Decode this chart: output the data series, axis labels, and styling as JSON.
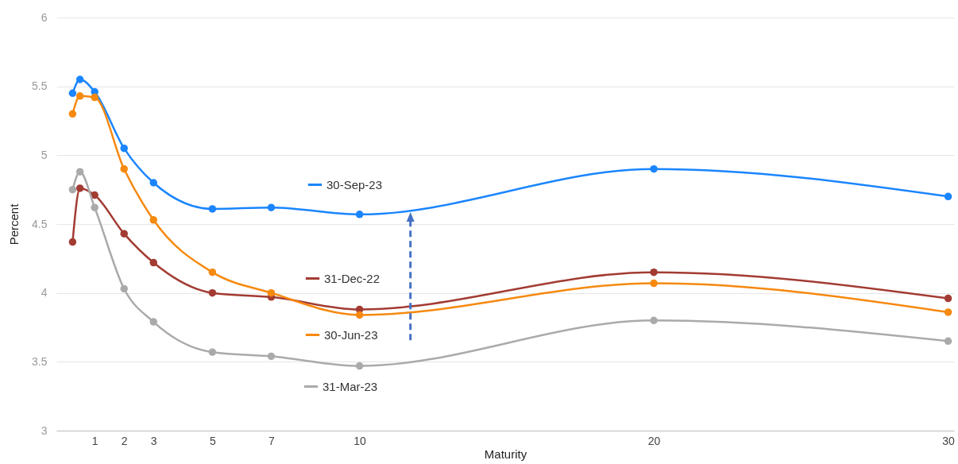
{
  "chart_data": {
    "type": "line",
    "xlabel": "Maturity",
    "ylabel": "Percent",
    "x": [
      0.25,
      0.5,
      1,
      2,
      3,
      5,
      7,
      10,
      20,
      30
    ],
    "series": [
      {
        "name": "30-Sep-23",
        "color": "#1a85ff",
        "values": [
          5.45,
          5.55,
          5.46,
          5.05,
          4.8,
          4.61,
          4.62,
          4.57,
          4.9,
          4.7
        ]
      },
      {
        "name": "31-Dec-22",
        "color": "#a23b32",
        "values": [
          4.37,
          4.76,
          4.71,
          4.43,
          4.22,
          4.0,
          3.97,
          3.88,
          4.15,
          3.96
        ]
      },
      {
        "name": "30-Jun-23",
        "color": "#f6890f",
        "values": [
          5.3,
          5.43,
          5.42,
          4.9,
          4.53,
          4.15,
          4.0,
          3.84,
          4.07,
          3.86
        ]
      },
      {
        "name": "31-Mar-23",
        "color": "#aaaaaa",
        "values": [
          4.75,
          4.88,
          4.62,
          4.03,
          3.79,
          3.57,
          3.54,
          3.47,
          3.8,
          3.65
        ]
      }
    ],
    "xlim": [
      -0.3,
      30.2
    ],
    "xticks": [
      1,
      2,
      3,
      5,
      7,
      10,
      20,
      30
    ],
    "ylim": [
      3,
      6
    ],
    "yticks": [
      3,
      3.5,
      4,
      4.5,
      5,
      5.5,
      6
    ],
    "grid": "y",
    "legend": "left",
    "marker": "circle",
    "line_style": "solid"
  }
}
